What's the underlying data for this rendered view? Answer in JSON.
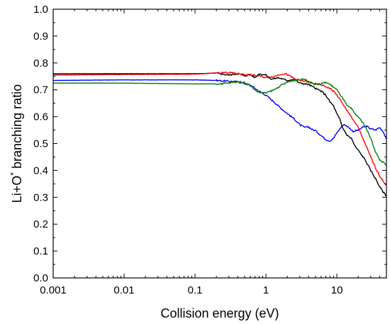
{
  "chart_data": {
    "type": "line",
    "xlabel": "Collision energy (eV)",
    "ylabel_main": "Li+O",
    "ylabel_sup": "*",
    "ylabel_tail": " branching ratio",
    "xscale": "log",
    "xlim": [
      0.001,
      50
    ],
    "ylim": [
      0.0,
      1.0
    ],
    "grid": false,
    "x_ticks": [
      0.001,
      0.01,
      0.1,
      1,
      10
    ],
    "x_tick_labels": [
      "0.001",
      "0.01",
      "0.1",
      "1",
      "10"
    ],
    "y_ticks": [
      0.0,
      0.1,
      0.2,
      0.3,
      0.4,
      0.5,
      0.6,
      0.7,
      0.8,
      0.9,
      1.0
    ],
    "y_tick_labels": [
      "0.0",
      "0.1",
      "0.2",
      "0.3",
      "0.4",
      "0.5",
      "0.6",
      "0.7",
      "0.8",
      "0.9",
      "1.0"
    ],
    "series": [
      {
        "color": "#0000ff",
        "points": [
          [
            0.001,
            0.735
          ],
          [
            0.01,
            0.737
          ],
          [
            0.1,
            0.737
          ],
          [
            0.2,
            0.735
          ],
          [
            0.4,
            0.73
          ],
          [
            0.6,
            0.718
          ],
          [
            0.8,
            0.695
          ],
          [
            1.0,
            0.68
          ],
          [
            1.3,
            0.655
          ],
          [
            1.6,
            0.633
          ],
          [
            2.0,
            0.612
          ],
          [
            2.5,
            0.592
          ],
          [
            3.0,
            0.57
          ],
          [
            3.5,
            0.56
          ],
          [
            4.0,
            0.562
          ],
          [
            4.5,
            0.552
          ],
          [
            5.0,
            0.548
          ],
          [
            6.0,
            0.53
          ],
          [
            7.0,
            0.515
          ],
          [
            8.0,
            0.51
          ],
          [
            9.0,
            0.52
          ],
          [
            10.0,
            0.54
          ],
          [
            11.0,
            0.555
          ],
          [
            12.0,
            0.568
          ],
          [
            13.0,
            0.57
          ],
          [
            15.0,
            0.558
          ],
          [
            17.0,
            0.545
          ],
          [
            20.0,
            0.55
          ],
          [
            23.0,
            0.56
          ],
          [
            26.0,
            0.565
          ],
          [
            30.0,
            0.555
          ],
          [
            35.0,
            0.55
          ],
          [
            40.0,
            0.56
          ],
          [
            45.0,
            0.545
          ],
          [
            50.0,
            0.515
          ]
        ]
      },
      {
        "color": "#000000",
        "points": [
          [
            0.001,
            0.76
          ],
          [
            0.01,
            0.76
          ],
          [
            0.05,
            0.76
          ],
          [
            0.1,
            0.76
          ],
          [
            0.2,
            0.762
          ],
          [
            0.3,
            0.755
          ],
          [
            0.4,
            0.76
          ],
          [
            0.5,
            0.752
          ],
          [
            0.6,
            0.758
          ],
          [
            0.7,
            0.745
          ],
          [
            0.8,
            0.76
          ],
          [
            1.0,
            0.755
          ],
          [
            1.2,
            0.74
          ],
          [
            1.5,
            0.745
          ],
          [
            2.0,
            0.735
          ],
          [
            2.5,
            0.74
          ],
          [
            3.0,
            0.725
          ],
          [
            4.0,
            0.72
          ],
          [
            5.0,
            0.705
          ],
          [
            6.0,
            0.695
          ],
          [
            7.0,
            0.68
          ],
          [
            8.0,
            0.655
          ],
          [
            9.0,
            0.64
          ],
          [
            10.0,
            0.61
          ],
          [
            11.0,
            0.59
          ],
          [
            12.0,
            0.56
          ],
          [
            14.0,
            0.53
          ],
          [
            16.0,
            0.52
          ],
          [
            18.0,
            0.49
          ],
          [
            20.0,
            0.475
          ],
          [
            25.0,
            0.44
          ],
          [
            30.0,
            0.4
          ],
          [
            35.0,
            0.37
          ],
          [
            40.0,
            0.34
          ],
          [
            45.0,
            0.32
          ],
          [
            50.0,
            0.305
          ]
        ]
      },
      {
        "color": "#ff0000",
        "points": [
          [
            0.001,
            0.755
          ],
          [
            0.01,
            0.757
          ],
          [
            0.1,
            0.758
          ],
          [
            0.2,
            0.763
          ],
          [
            0.3,
            0.765
          ],
          [
            0.4,
            0.76
          ],
          [
            0.6,
            0.755
          ],
          [
            0.8,
            0.752
          ],
          [
            1.0,
            0.745
          ],
          [
            1.3,
            0.75
          ],
          [
            1.6,
            0.758
          ],
          [
            1.9,
            0.76
          ],
          [
            2.2,
            0.75
          ],
          [
            2.6,
            0.74
          ],
          [
            3.0,
            0.735
          ],
          [
            4.0,
            0.73
          ],
          [
            5.0,
            0.722
          ],
          [
            6.0,
            0.718
          ],
          [
            7.0,
            0.712
          ],
          [
            8.0,
            0.705
          ],
          [
            9.0,
            0.695
          ],
          [
            10.0,
            0.68
          ],
          [
            12.0,
            0.65
          ],
          [
            14.0,
            0.62
          ],
          [
            16.0,
            0.6
          ],
          [
            20.0,
            0.56
          ],
          [
            25.0,
            0.5
          ],
          [
            30.0,
            0.45
          ],
          [
            35.0,
            0.41
          ],
          [
            40.0,
            0.38
          ],
          [
            45.0,
            0.36
          ],
          [
            50.0,
            0.345
          ]
        ]
      },
      {
        "color": "#008000",
        "points": [
          [
            0.001,
            0.725
          ],
          [
            0.01,
            0.725
          ],
          [
            0.05,
            0.723
          ],
          [
            0.1,
            0.722
          ],
          [
            0.2,
            0.722
          ],
          [
            0.3,
            0.725
          ],
          [
            0.4,
            0.73
          ],
          [
            0.5,
            0.728
          ],
          [
            0.6,
            0.715
          ],
          [
            0.7,
            0.7
          ],
          [
            0.8,
            0.69
          ],
          [
            1.0,
            0.688
          ],
          [
            1.3,
            0.7
          ],
          [
            1.6,
            0.715
          ],
          [
            2.0,
            0.728
          ],
          [
            2.5,
            0.735
          ],
          [
            3.0,
            0.738
          ],
          [
            3.5,
            0.74
          ],
          [
            4.0,
            0.73
          ],
          [
            5.0,
            0.72
          ],
          [
            6.0,
            0.722
          ],
          [
            7.0,
            0.728
          ],
          [
            8.0,
            0.72
          ],
          [
            9.0,
            0.71
          ],
          [
            10.0,
            0.7
          ],
          [
            12.0,
            0.67
          ],
          [
            14.0,
            0.64
          ],
          [
            16.0,
            0.63
          ],
          [
            18.0,
            0.61
          ],
          [
            20.0,
            0.6
          ],
          [
            25.0,
            0.565
          ],
          [
            30.0,
            0.52
          ],
          [
            35.0,
            0.47
          ],
          [
            40.0,
            0.44
          ],
          [
            45.0,
            0.43
          ],
          [
            50.0,
            0.42
          ]
        ]
      }
    ]
  }
}
